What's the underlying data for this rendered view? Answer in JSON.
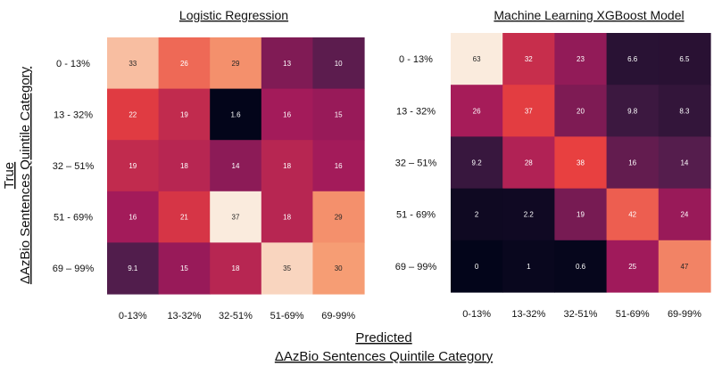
{
  "chart_data": [
    {
      "type": "heatmap",
      "title": "Logistic Regression",
      "row_labels": [
        "0 - 13%",
        "13 - 32%",
        "32 – 51%",
        "51 - 69%",
        "69 – 99%"
      ],
      "col_labels": [
        "0-13%",
        "13-32%",
        "32-51%",
        "51-69%",
        "69-99%"
      ],
      "values": [
        [
          33,
          26,
          29,
          13,
          10
        ],
        [
          22,
          19,
          1.6,
          16,
          15
        ],
        [
          19,
          18,
          14,
          18,
          16
        ],
        [
          16,
          21,
          37,
          18,
          29
        ],
        [
          9.1,
          15,
          18,
          35,
          30
        ]
      ]
    },
    {
      "type": "heatmap",
      "title": "Machine Learning XGBoost Model",
      "row_labels": [
        "0 - 13%",
        "13 - 32%",
        "32 – 51%",
        "51 - 69%",
        "69 – 99%"
      ],
      "col_labels": [
        "0-13%",
        "13-32%",
        "32-51%",
        "51-69%",
        "69-99%"
      ],
      "values": [
        [
          63,
          32,
          23,
          6.6,
          6.5
        ],
        [
          26,
          37,
          20,
          9.8,
          8.3
        ],
        [
          9.2,
          28,
          38,
          16,
          14
        ],
        [
          2,
          2.2,
          19,
          42,
          24
        ],
        [
          0,
          1,
          0.6,
          25,
          47
        ]
      ]
    }
  ],
  "axes": {
    "y_title_line1": "True",
    "y_title_line2": "ΔAzBio Sentences Quintile Category",
    "x_title_line1": "Predicted",
    "x_title_line2": "ΔAzBio Sentences Quintile Category"
  },
  "colormap": [
    "#03051a",
    "#4c1d4b",
    "#a11a5b",
    "#e83f3f",
    "#f69c73",
    "#faebdd"
  ],
  "color_scales": [
    [
      1.6,
      37
    ],
    [
      0,
      63
    ]
  ]
}
